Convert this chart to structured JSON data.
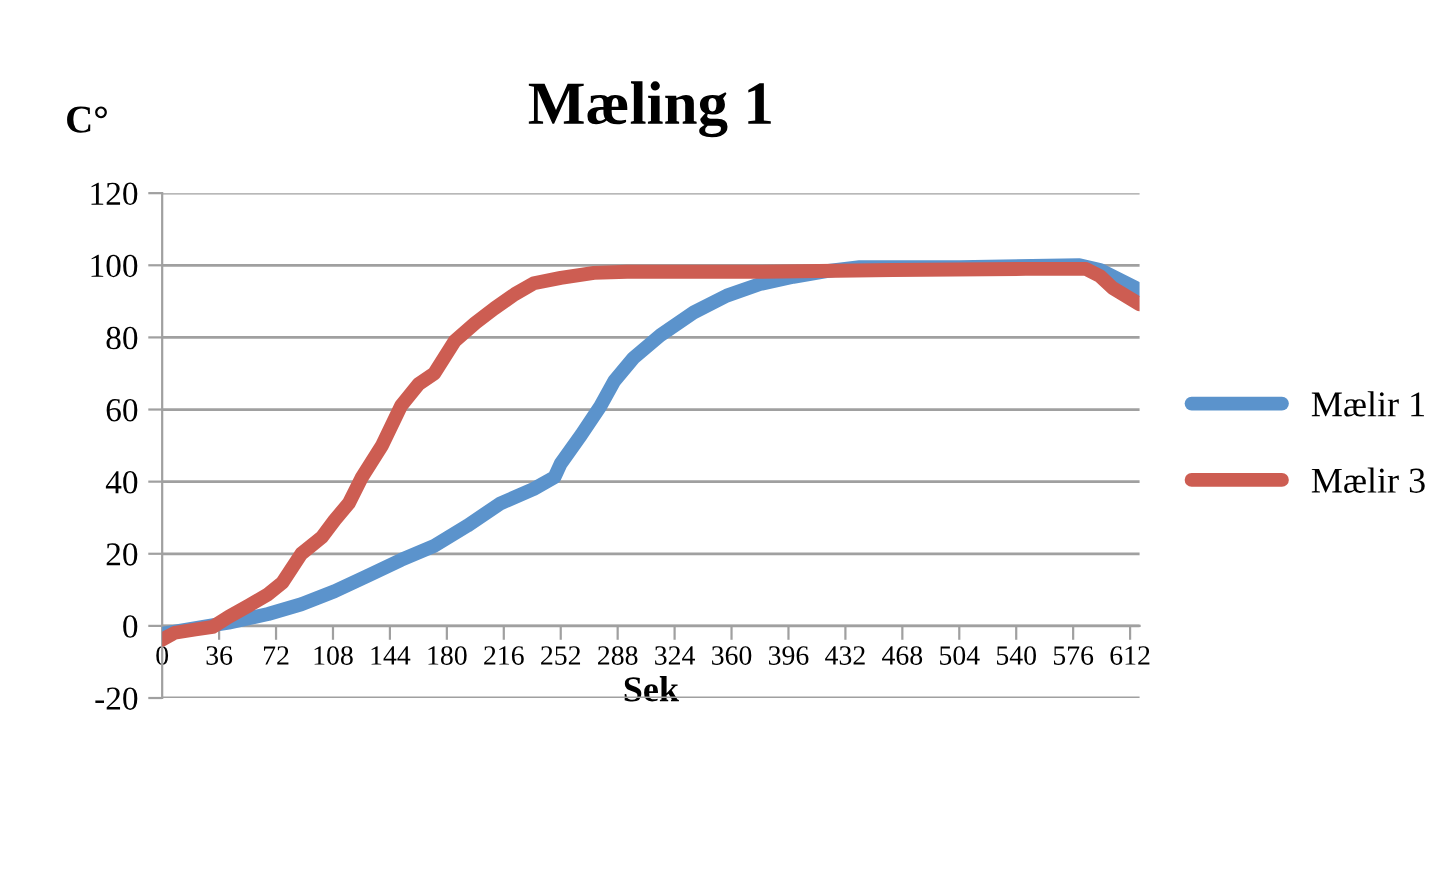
{
  "chart_data": {
    "type": "line",
    "title": "Mæling 1",
    "ylabel": "C°",
    "xlabel": "Sek",
    "xlim": [
      0,
      618
    ],
    "xticks": [
      0,
      36,
      72,
      108,
      144,
      180,
      216,
      252,
      288,
      324,
      360,
      396,
      432,
      468,
      504,
      540,
      576,
      612
    ],
    "ylim": [
      -20,
      120
    ],
    "yticks": [
      -20,
      0,
      20,
      40,
      60,
      80,
      100,
      120
    ],
    "grid": "y",
    "legend": "right",
    "marker": "none",
    "line_style": "solid",
    "series": [
      {
        "name": "Mælir 1",
        "color": "#5b93cc",
        "x": [
          0,
          25,
          42,
          67,
          88,
          109,
          130,
          151,
          172,
          193,
          214,
          235,
          248,
          252,
          265,
          277,
          286,
          298,
          315,
          336,
          357,
          378,
          399,
          420,
          441,
          504,
          580,
          593,
          618
        ],
        "values": [
          -2.2,
          -0.3,
          0.9,
          3.3,
          6,
          9.6,
          13.9,
          18.3,
          22.2,
          27.8,
          34,
          38,
          41.2,
          45,
          53,
          60.9,
          68,
          74.3,
          80.6,
          86.9,
          91.6,
          94.8,
          96.8,
          98.4,
          99.5,
          99.5,
          100,
          98.7,
          93.2
        ]
      },
      {
        "name": "Mælir 3",
        "color": "#cd5d52",
        "x": [
          0,
          8,
          21,
          32,
          42,
          55,
          67,
          76,
          88,
          101,
          109,
          118,
          126,
          139,
          151,
          162,
          172,
          185,
          198,
          210,
          223,
          235,
          252,
          273,
          294,
          378,
          462,
          546,
          584,
          593,
          601,
          618
        ],
        "values": [
          -3.8,
          -1.9,
          -1,
          -0.3,
          2.5,
          5.7,
          8.8,
          12,
          20,
          24.6,
          29.3,
          34,
          41,
          50,
          61,
          67,
          70,
          79,
          84,
          88,
          92,
          95,
          96.5,
          97.9,
          98.2,
          98.2,
          98.7,
          99,
          99,
          97,
          93.7,
          89.2
        ]
      }
    ]
  }
}
